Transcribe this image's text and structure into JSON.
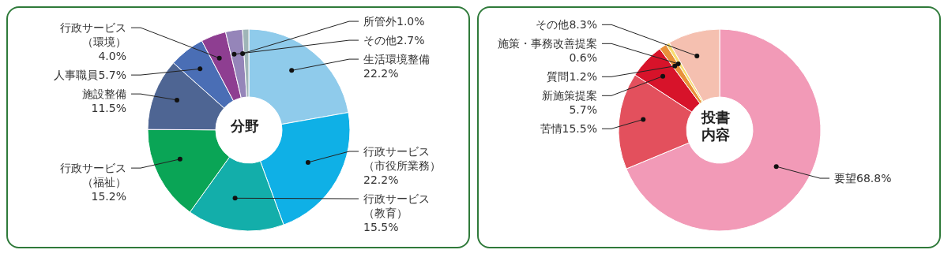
{
  "chart_data": [
    {
      "type": "donut",
      "title": "分野",
      "categories": [
        "生活環境整備",
        "行政サービス（市役所業務）",
        "行政サービス（教育）",
        "行政サービス（福祉）",
        "施設整備",
        "人事職員",
        "行政サービス（環境）",
        "その他",
        "所管外"
      ],
      "values": [
        22.2,
        22.2,
        15.5,
        15.2,
        11.5,
        5.7,
        4.0,
        2.7,
        1.0
      ],
      "value_labels": [
        "22.2%",
        "22.2%",
        "15.5%",
        "15.2%",
        "11.5%",
        "5.7%",
        "4.0%",
        "2.7%",
        "1.0%"
      ],
      "colors": [
        "#8fcbeb",
        "#0fb0e6",
        "#13aeaa",
        "#0aa556",
        "#4e6593",
        "#4a6eb5",
        "#8e3e91",
        "#9585b9",
        "#9fb5b8"
      ]
    },
    {
      "type": "donut",
      "title": "投書内容",
      "categories": [
        "要望",
        "苦情",
        "新施策提案",
        "質問",
        "施策・事務改善提案",
        "その他"
      ],
      "values": [
        68.8,
        15.5,
        5.7,
        1.2,
        0.6,
        8.3
      ],
      "value_labels": [
        "68.8%",
        "15.5%",
        "5.7%",
        "1.2%",
        "0.6%",
        "8.3%"
      ],
      "colors": [
        "#f29ab7",
        "#e3505d",
        "#d7132a",
        "#e8913a",
        "#f7dc6f",
        "#f5c0b0"
      ]
    }
  ]
}
